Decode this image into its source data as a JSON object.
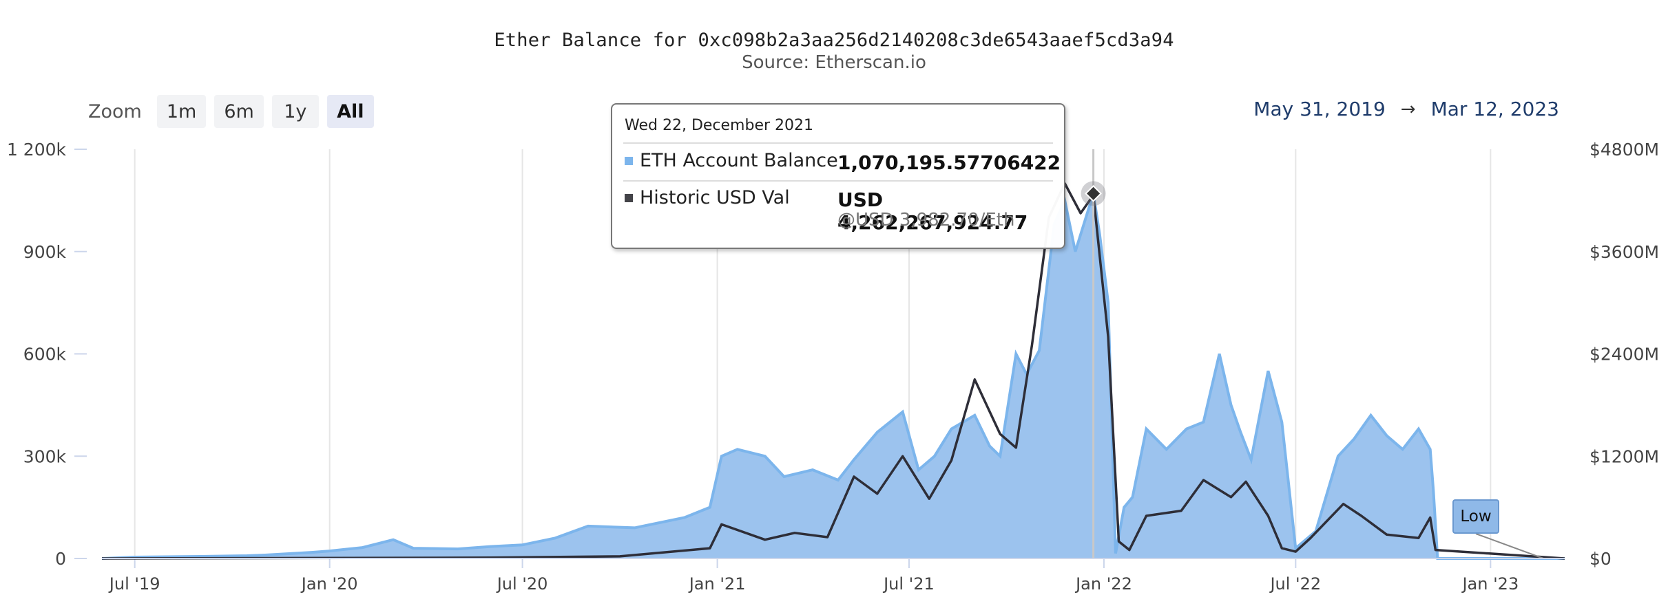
{
  "header": {
    "title": "Ether Balance for 0xc098b2a3aa256d2140208c3de6543aaef5cd3a94",
    "subtitle": "Source: Etherscan.io"
  },
  "zoom": {
    "label": "Zoom",
    "options": [
      "1m",
      "6m",
      "1y",
      "All"
    ],
    "active": "All"
  },
  "range": {
    "from": "May 31, 2019",
    "arrow": "→",
    "to": "Mar 12, 2023"
  },
  "tooltip": {
    "date": "Wed 22, December 2021",
    "rows": [
      {
        "label": "ETH Account Balance",
        "value": "1,070,195.57706422",
        "color": "#7cb5ec"
      },
      {
        "label": "Historic USD Val",
        "value": "USD 4,262,267,924.77",
        "sub": "@USD 3,982.70/Eth",
        "color": "#434348"
      }
    ]
  },
  "flag": {
    "label": "Low"
  },
  "colors": {
    "balance_fill": "#9cc3ee",
    "balance_line": "#7cb5ec",
    "usd_line": "#2e2e38",
    "grid": "#e6e6e6"
  },
  "chart_data": {
    "type": "area",
    "title": "Ether Balance for 0xc098b2a3aa256d2140208c3de6543aaef5cd3a94",
    "subtitle": "Source: Etherscan.io",
    "x_range": [
      "2019-05-31",
      "2023-03-12"
    ],
    "x_ticks": [
      "Jul '19",
      "Jan '20",
      "Jul '20",
      "Jan '21",
      "Jul '21",
      "Jan '22",
      "Jul '22",
      "Jan '23"
    ],
    "y_left": {
      "ticks": [
        "0",
        "300k",
        "600k",
        "900k",
        "1 200k"
      ],
      "ylim": [
        0,
        1200000
      ]
    },
    "y_right": {
      "ticks": [
        "$0",
        "$1200M",
        "$2400M",
        "$3600M",
        "$4800M"
      ],
      "ylim": [
        0,
        4800
      ]
    },
    "grid": "vertical",
    "series": [
      {
        "name": "ETH Account Balance",
        "axis": "left",
        "type": "area",
        "x": [
          "2019-05-31",
          "2019-07-01",
          "2019-09-01",
          "2019-10-15",
          "2019-11-01",
          "2019-12-15",
          "2020-01-01",
          "2020-02-01",
          "2020-03-01",
          "2020-03-20",
          "2020-05-01",
          "2020-06-01",
          "2020-07-01",
          "2020-08-01",
          "2020-09-01",
          "2020-10-15",
          "2020-12-01",
          "2020-12-25",
          "2021-01-05",
          "2021-01-20",
          "2021-02-15",
          "2021-03-05",
          "2021-04-01",
          "2021-04-25",
          "2021-05-10",
          "2021-06-01",
          "2021-06-25",
          "2021-07-10",
          "2021-07-25",
          "2021-08-10",
          "2021-09-01",
          "2021-09-15",
          "2021-09-25",
          "2021-10-10",
          "2021-10-20",
          "2021-11-01",
          "2021-11-15",
          "2021-11-25",
          "2021-12-05",
          "2021-12-15",
          "2021-12-22",
          "2021-12-28",
          "2022-01-05",
          "2022-01-12",
          "2022-01-20",
          "2022-01-28",
          "2022-02-10",
          "2022-03-01",
          "2022-03-20",
          "2022-04-05",
          "2022-04-20",
          "2022-05-01",
          "2022-05-10",
          "2022-05-20",
          "2022-06-05",
          "2022-06-18",
          "2022-07-01",
          "2022-07-20",
          "2022-08-10",
          "2022-08-25",
          "2022-09-10",
          "2022-09-25",
          "2022-10-10",
          "2022-10-25",
          "2022-11-05",
          "2022-11-08",
          "2022-11-12",
          "2023-01-01",
          "2023-03-12"
        ],
        "values": [
          0,
          4000,
          6000,
          8000,
          10000,
          18000,
          22000,
          32000,
          55000,
          30000,
          28000,
          35000,
          40000,
          60000,
          95000,
          90000,
          120000,
          150000,
          300000,
          320000,
          300000,
          240000,
          260000,
          230000,
          290000,
          370000,
          430000,
          260000,
          300000,
          380000,
          420000,
          330000,
          300000,
          600000,
          540000,
          610000,
          980000,
          1050000,
          900000,
          1000000,
          1070000,
          950000,
          750000,
          15000,
          150000,
          180000,
          380000,
          320000,
          380000,
          400000,
          600000,
          450000,
          370000,
          290000,
          550000,
          400000,
          30000,
          80000,
          300000,
          350000,
          420000,
          360000,
          320000,
          380000,
          320000,
          200000,
          0,
          0,
          0
        ]
      },
      {
        "name": "Historic USD Val",
        "axis": "right",
        "type": "line",
        "x": [
          "2019-05-31",
          "2019-12-01",
          "2020-06-01",
          "2020-10-01",
          "2020-12-25",
          "2021-01-05",
          "2021-02-15",
          "2021-03-15",
          "2021-04-15",
          "2021-05-10",
          "2021-06-01",
          "2021-06-25",
          "2021-07-20",
          "2021-08-10",
          "2021-09-01",
          "2021-09-25",
          "2021-10-10",
          "2021-10-25",
          "2021-11-10",
          "2021-11-25",
          "2021-12-10",
          "2021-12-22",
          "2022-01-05",
          "2022-01-15",
          "2022-01-25",
          "2022-02-10",
          "2022-03-15",
          "2022-04-05",
          "2022-05-01",
          "2022-05-15",
          "2022-06-05",
          "2022-06-18",
          "2022-07-01",
          "2022-07-15",
          "2022-08-15",
          "2022-09-01",
          "2022-09-25",
          "2022-10-25",
          "2022-11-05",
          "2022-11-10",
          "2023-03-12"
        ],
        "values": [
          0,
          5,
          10,
          25,
          120,
          400,
          220,
          300,
          250,
          960,
          760,
          1200,
          700,
          1150,
          2100,
          1460,
          1300,
          2500,
          4000,
          4400,
          4050,
          4262,
          2600,
          200,
          100,
          500,
          560,
          920,
          720,
          900,
          500,
          120,
          80,
          240,
          640,
          500,
          280,
          240,
          480,
          100,
          0
        ]
      }
    ]
  }
}
